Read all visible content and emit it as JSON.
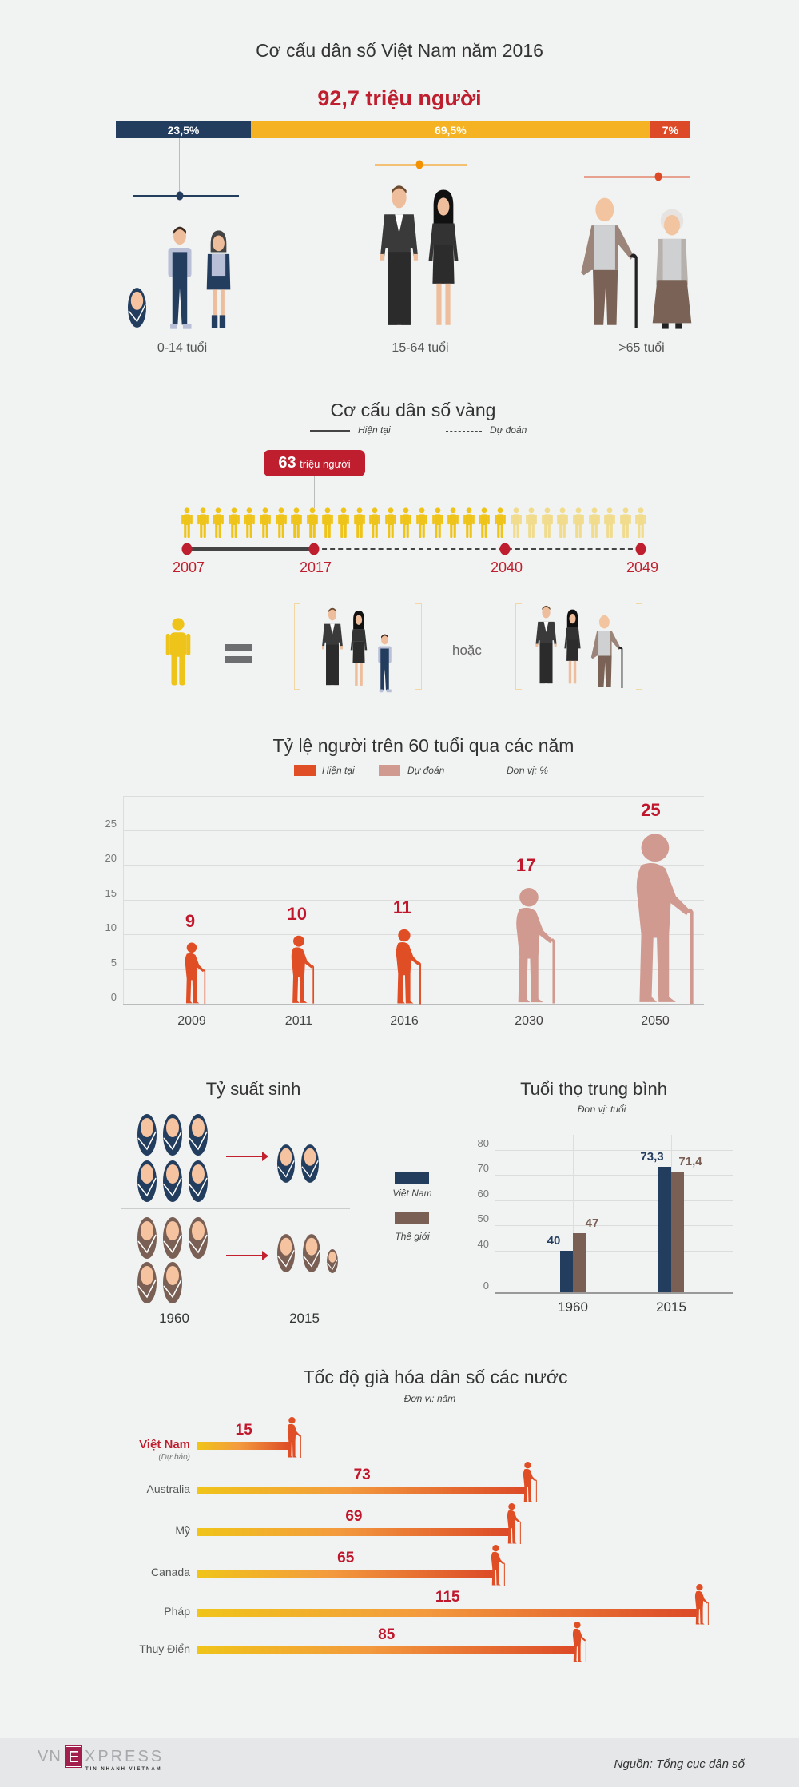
{
  "section1": {
    "title": "Cơ cấu dân số Việt Nam năm 2016",
    "total": "92,7 triệu người",
    "segments": [
      {
        "label": "23,5%",
        "value": 23.5,
        "color": "#233d5f",
        "group": "0-14 tuổi"
      },
      {
        "label": "69,5%",
        "value": 69.5,
        "color": "#f5b324",
        "group": "15-64 tuổi"
      },
      {
        "label": "7%",
        "value": 7,
        "color": "#dc4a27",
        "group": ">65 tuổi"
      }
    ]
  },
  "section2": {
    "title": "Cơ cấu dân số vàng",
    "legend": {
      "current": "Hiện tại",
      "forecast": "Dự đoán"
    },
    "badge": {
      "number": "63",
      "unit": "triệu người"
    },
    "years": [
      "2007",
      "2017",
      "2040",
      "2049"
    ],
    "or": "hoặc",
    "colors": {
      "person": "#efc41a",
      "faded": "#f0dc8c",
      "accent": "#be1e2d"
    }
  },
  "chart_data": [
    {
      "type": "bar",
      "title": "Tỷ lệ người trên 60 tuổi qua các năm",
      "legend": {
        "current": "Hiện tại",
        "forecast": "Dự đoán"
      },
      "unit": "Đơn vị: %",
      "categories": [
        "2009",
        "2011",
        "2016",
        "2030",
        "2050"
      ],
      "values": [
        9,
        10,
        11,
        17,
        25
      ],
      "status": [
        "current",
        "current",
        "current",
        "forecast",
        "forecast"
      ],
      "yticks": [
        "0",
        "5",
        "10",
        "15",
        "20",
        "25"
      ],
      "ylim": [
        0,
        30
      ],
      "grid": true,
      "colors": {
        "current": "#e04e26",
        "forecast": "#d09a90",
        "label": "#c0172c"
      }
    },
    {
      "type": "bar",
      "title": "Tuổi thọ trung bình",
      "unit": "Đơn vị: tuổi",
      "categories": [
        "1960",
        "2015"
      ],
      "series": [
        {
          "name": "Việt Nam",
          "values": [
            40,
            73.3
          ],
          "labels": [
            "40",
            "73,3"
          ],
          "color": "#233d5f"
        },
        {
          "name": "Thế giới",
          "values": [
            47,
            71.4
          ],
          "labels": [
            "47",
            "71,4"
          ],
          "color": "#7a5f55"
        }
      ],
      "yticks": [
        "0",
        "40",
        "50",
        "60",
        "70",
        "80"
      ],
      "grid": true,
      "legend_position": "left"
    },
    {
      "type": "bar",
      "orientation": "horizontal",
      "title": "Tốc độ già hóa dân số các nước",
      "unit": "Đơn vị: năm",
      "categories": [
        "Việt Nam",
        "Australia",
        "Mỹ",
        "Canada",
        "Pháp",
        "Thụy Điển"
      ],
      "notes": [
        "(Dự báo)",
        "",
        "",
        "",
        "",
        ""
      ],
      "values": [
        15,
        73,
        69,
        65,
        115,
        85
      ],
      "colors": {
        "start": "#f0c419",
        "end": "#dc4a27",
        "label": "#c0172c"
      }
    }
  ],
  "fertility": {
    "title": "Tỷ suất sinh",
    "years": [
      "1960",
      "2015"
    ],
    "vietnam_icons": [
      6,
      2
    ],
    "world_icons": [
      5,
      2.5
    ]
  },
  "footer": {
    "logo": "VNEXPRESS",
    "logo_tagline": "TIN NHANH VIETNAM",
    "source": "Nguồn: Tổng cục dân số"
  }
}
